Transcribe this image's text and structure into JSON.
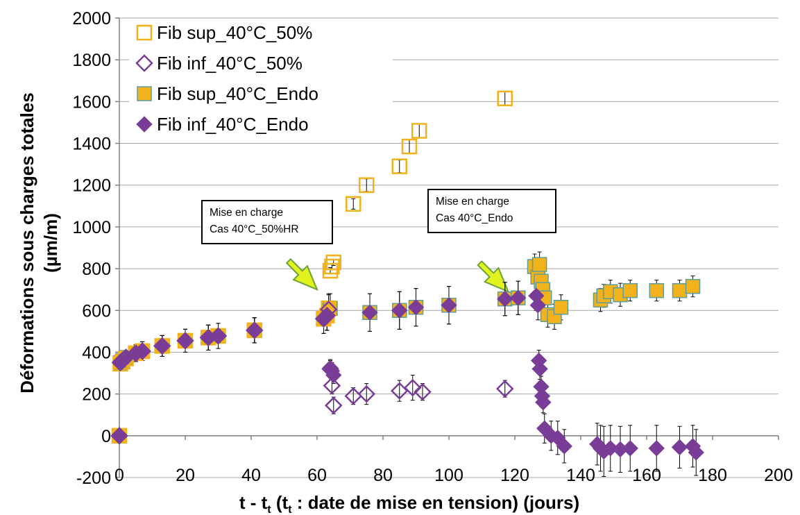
{
  "chart_data": {
    "type": "scatter",
    "title": "",
    "ylabel_line1": "Déformations sous charges totales",
    "ylabel_line2": "(µm/m)",
    "xlabel_main": "t - t",
    "xlabel_sub": "t",
    "xlabel_mid": " (t",
    "xlabel_sub2": "t",
    "xlabel_end": " : date de mise en tension) (jours)",
    "xlim": [
      0,
      200
    ],
    "ylim": [
      -200,
      2000
    ],
    "xticks": [
      0,
      20,
      40,
      60,
      80,
      100,
      120,
      140,
      160,
      180,
      200
    ],
    "yticks": [
      -200,
      0,
      200,
      400,
      600,
      800,
      1000,
      1200,
      1400,
      1600,
      1800,
      2000
    ],
    "grid": "horizontal",
    "legend_position": "top-left",
    "series": [
      {
        "name": "Fib sup_40°C_50%",
        "marker": "square-open",
        "color": "#F2B21C",
        "x": [
          0,
          0.3,
          1,
          2,
          5,
          7,
          13,
          20,
          27,
          30,
          41,
          62,
          63,
          63.5,
          64,
          64.5,
          65,
          71,
          75,
          85,
          88,
          91,
          117
        ],
        "y": [
          0,
          345,
          355,
          370,
          395,
          405,
          430,
          455,
          470,
          478,
          505,
          560,
          575,
          610,
          790,
          810,
          830,
          1110,
          1200,
          1290,
          1385,
          1460,
          1615
        ],
        "err": [
          0,
          25,
          25,
          30,
          40,
          45,
          50,
          55,
          60,
          60,
          60,
          70,
          70,
          70,
          15,
          15,
          15,
          25,
          30,
          30,
          35,
          35,
          35
        ]
      },
      {
        "name": "Fib inf_40°C_50%",
        "marker": "diamond-open",
        "color": "#7A3D97",
        "x": [
          0,
          0.3,
          1,
          2,
          5,
          7,
          13,
          20,
          27,
          30,
          41,
          62,
          63,
          63.5,
          64,
          64.5,
          65,
          71,
          75,
          85,
          89,
          92,
          117
        ],
        "y": [
          0,
          350,
          360,
          375,
          395,
          405,
          430,
          455,
          470,
          478,
          505,
          560,
          575,
          605,
          320,
          240,
          145,
          190,
          200,
          215,
          230,
          210,
          225
        ],
        "err": [
          0,
          25,
          25,
          30,
          40,
          45,
          50,
          55,
          60,
          60,
          60,
          70,
          70,
          70,
          40,
          40,
          40,
          40,
          50,
          50,
          60,
          40,
          40
        ]
      },
      {
        "name": "Fib sup_40°C_Endo",
        "marker": "square-filled",
        "color": "#F2B21C",
        "edge": "#5E9E9A",
        "x": [
          0,
          0.3,
          1,
          2,
          5,
          7,
          13,
          20,
          27,
          30,
          41,
          62,
          63,
          64,
          76,
          85,
          90,
          100,
          117,
          121,
          126,
          127,
          127.5,
          128,
          128.5,
          129,
          130,
          132,
          134,
          146,
          147,
          149,
          152,
          155,
          163,
          170,
          174
        ],
        "y": [
          0,
          350,
          360,
          375,
          395,
          405,
          430,
          455,
          470,
          478,
          505,
          560,
          575,
          610,
          590,
          600,
          615,
          625,
          655,
          660,
          810,
          760,
          820,
          740,
          700,
          660,
          580,
          570,
          615,
          650,
          670,
          690,
          675,
          695,
          695,
          695,
          715
        ],
        "err": [
          0,
          25,
          25,
          30,
          40,
          45,
          50,
          55,
          60,
          60,
          60,
          70,
          70,
          70,
          90,
          90,
          90,
          90,
          80,
          80,
          60,
          60,
          60,
          60,
          60,
          60,
          60,
          60,
          60,
          55,
          55,
          55,
          55,
          50,
          50,
          50,
          50
        ]
      },
      {
        "name": "Fib inf_40°C_Endo",
        "marker": "diamond-filled",
        "color": "#7A3D97",
        "x": [
          0,
          0.3,
          1,
          2,
          5,
          7,
          13,
          20,
          27,
          30,
          41,
          62,
          63,
          64,
          64.5,
          65,
          76,
          85,
          90,
          100,
          117,
          121,
          126.5,
          127,
          127.3,
          127.6,
          128,
          128.3,
          128.6,
          129,
          131,
          133,
          135,
          145,
          146,
          147,
          149,
          152,
          155,
          163,
          170,
          174,
          175
        ],
        "y": [
          0,
          355,
          365,
          378,
          395,
          405,
          430,
          455,
          470,
          478,
          505,
          560,
          575,
          325,
          310,
          290,
          590,
          600,
          615,
          625,
          655,
          660,
          670,
          625,
          360,
          320,
          235,
          190,
          160,
          35,
          0,
          -10,
          -50,
          -40,
          -60,
          -75,
          -60,
          -65,
          -60,
          -60,
          -55,
          -50,
          -80
        ],
        "err": [
          0,
          25,
          25,
          30,
          40,
          45,
          50,
          55,
          60,
          60,
          60,
          70,
          70,
          40,
          40,
          40,
          90,
          90,
          90,
          90,
          80,
          80,
          70,
          70,
          50,
          50,
          50,
          50,
          50,
          70,
          70,
          80,
          80,
          100,
          110,
          120,
          110,
          110,
          110,
          110,
          100,
          100,
          110
        ]
      }
    ],
    "annotations": [
      {
        "line1": "Mise en charge",
        "line2": "Cas 40°C_50%HR",
        "arrow_to": [
          60,
          700
        ]
      },
      {
        "line1": "Mise en charge",
        "line2": "Cas 40°C_Endo",
        "arrow_to": [
          118,
          690
        ]
      }
    ]
  }
}
